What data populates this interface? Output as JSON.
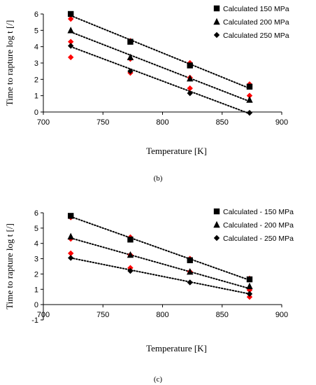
{
  "chart_data": [
    {
      "type": "scatter",
      "panel_label": "(b)",
      "xlabel": "Temperature [K]",
      "ylabel": "Time to rapture  log t [/]",
      "xlim": [
        700,
        900
      ],
      "ylim": [
        0,
        6
      ],
      "xticks": [
        700,
        750,
        800,
        850,
        900
      ],
      "yticks": [
        0,
        1,
        2,
        3,
        4,
        5,
        6
      ],
      "legend_position": "top-right",
      "series": [
        {
          "name": "Calculated 150 MPa",
          "marker": "square",
          "color": "#000000",
          "x": [
            723,
            773,
            823,
            873
          ],
          "y": [
            6.0,
            4.3,
            2.85,
            1.55
          ],
          "trend": {
            "x": [
              723,
              873
            ],
            "y": [
              5.9,
              1.45
            ]
          }
        },
        {
          "name": "Calculated 200 MPa",
          "marker": "triangle",
          "color": "#000000",
          "x": [
            723,
            773,
            823,
            873
          ],
          "y": [
            5.0,
            3.35,
            2.05,
            0.75
          ],
          "trend": {
            "x": [
              723,
              873
            ],
            "y": [
              4.9,
              0.65
            ]
          }
        },
        {
          "name": "Calculated 250 MPa",
          "marker": "diamond",
          "color": "#000000",
          "x": [
            723,
            773,
            823,
            873
          ],
          "y": [
            4.05,
            2.5,
            1.15,
            -0.05
          ],
          "trend": {
            "x": [
              723,
              873
            ],
            "y": [
              4.0,
              -0.1
            ]
          }
        },
        {
          "marker": "diamond",
          "color": "#ff0000",
          "x": [
            723,
            773,
            823,
            873,
            723,
            773,
            823,
            873,
            723,
            773,
            823
          ],
          "y": [
            5.7,
            4.35,
            3.0,
            1.7,
            4.3,
            3.25,
            2.1,
            1.0,
            3.35,
            2.4,
            1.45
          ]
        }
      ]
    },
    {
      "type": "scatter",
      "panel_label": "(c)",
      "xlabel": "Temperature [K]",
      "ylabel": "Time to rapture  log t [/]",
      "xlim": [
        700,
        900
      ],
      "ylim": [
        -1,
        6
      ],
      "xticks": [
        700,
        750,
        800,
        850,
        900
      ],
      "yticks": [
        -1,
        0,
        1,
        2,
        3,
        4,
        5,
        6
      ],
      "legend_position": "top-right",
      "series": [
        {
          "name": "Calculated - 150 MPa",
          "marker": "square",
          "color": "#000000",
          "x": [
            723,
            773,
            823,
            873
          ],
          "y": [
            5.8,
            4.25,
            2.9,
            1.65
          ],
          "trend": {
            "x": [
              723,
              873
            ],
            "y": [
              5.75,
              1.6
            ]
          }
        },
        {
          "name": "Calculated - 200 MPa",
          "marker": "triangle",
          "color": "#000000",
          "x": [
            723,
            773,
            823,
            873
          ],
          "y": [
            4.45,
            3.25,
            2.15,
            1.2
          ],
          "trend": {
            "x": [
              723,
              873
            ],
            "y": [
              4.35,
              1.05
            ]
          }
        },
        {
          "name": "Calculated - 250 MPa",
          "marker": "diamond",
          "color": "#000000",
          "x": [
            723,
            773,
            823,
            873
          ],
          "y": [
            3.05,
            2.2,
            1.45,
            0.7
          ],
          "trend": {
            "x": [
              723,
              873
            ],
            "y": [
              3.05,
              0.7
            ]
          }
        },
        {
          "marker": "diamond",
          "color": "#ff0000",
          "x": [
            723,
            773,
            823,
            873,
            723,
            773,
            823,
            873,
            723,
            773,
            873
          ],
          "y": [
            5.7,
            4.4,
            3.0,
            1.7,
            4.3,
            3.25,
            2.15,
            0.95,
            3.35,
            2.4,
            0.5
          ]
        }
      ]
    }
  ]
}
